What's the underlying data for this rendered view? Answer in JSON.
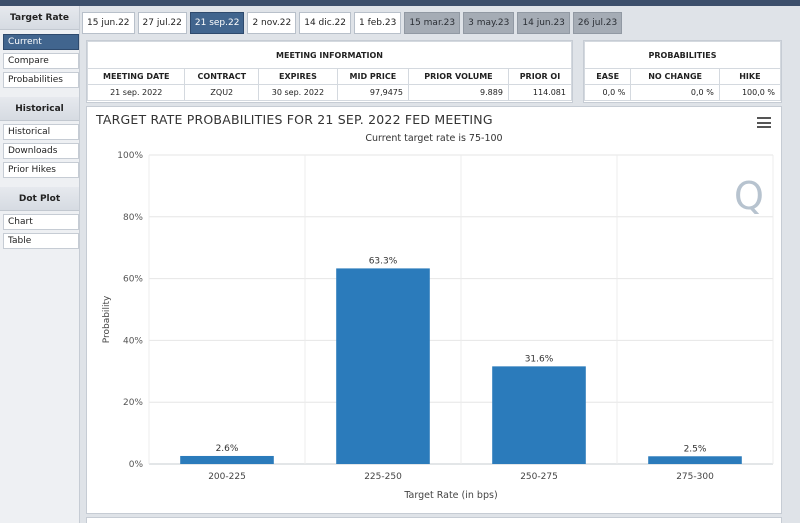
{
  "sidebar": {
    "sections": [
      {
        "title": "Target Rate",
        "items": [
          "Current",
          "Compare",
          "Probabilities"
        ],
        "active": 0
      },
      {
        "title": "Historical",
        "items": [
          "Historical",
          "Downloads",
          "Prior Hikes"
        ]
      },
      {
        "title": "Dot Plot",
        "items": [
          "Chart",
          "Table"
        ]
      }
    ]
  },
  "tabs": [
    {
      "label": "15 jun.22",
      "state": "normal"
    },
    {
      "label": "27 jul.22",
      "state": "normal"
    },
    {
      "label": "21 sep.22",
      "state": "active"
    },
    {
      "label": "2 nov.22",
      "state": "normal"
    },
    {
      "label": "14 dic.22",
      "state": "normal"
    },
    {
      "label": "1 feb.23",
      "state": "normal"
    },
    {
      "label": "15 mar.23",
      "state": "muted"
    },
    {
      "label": "3 may.23",
      "state": "muted"
    },
    {
      "label": "14 jun.23",
      "state": "muted"
    },
    {
      "label": "26 jul.23",
      "state": "muted"
    }
  ],
  "meeting_info": {
    "title": "MEETING INFORMATION",
    "headers": [
      "MEETING DATE",
      "CONTRACT",
      "EXPIRES",
      "MID PRICE",
      "PRIOR VOLUME",
      "PRIOR OI"
    ],
    "row": [
      "21 sep. 2022",
      "ZQU2",
      "30 sep. 2022",
      "97,9475",
      "9.889",
      "114.081"
    ]
  },
  "probabilities": {
    "title": "PROBABILITIES",
    "headers": [
      "EASE",
      "NO CHANGE",
      "HIKE"
    ],
    "row": [
      "0,0 %",
      "0,0 %",
      "100,0 %"
    ]
  },
  "chart": {
    "title": "TARGET RATE PROBABILITIES FOR 21 SEP. 2022 FED MEETING",
    "subtitle": "Current target rate is 75-100"
  },
  "chart_data": {
    "type": "bar",
    "categories": [
      "200-225",
      "225-250",
      "250-275",
      "275-300"
    ],
    "values": [
      2.6,
      63.3,
      31.6,
      2.5
    ],
    "data_labels": [
      "2.6%",
      "63.3%",
      "31.6%",
      "2.5%"
    ],
    "xlabel": "Target Rate (in bps)",
    "ylabel": "Probability",
    "ylim": [
      0,
      100
    ],
    "yticks": [
      0,
      20,
      40,
      60,
      80,
      100
    ],
    "ytick_labels": [
      "0%",
      "20%",
      "40%",
      "60%",
      "80%",
      "100%"
    ],
    "bar_color": "#2b7bbb",
    "grid": true
  },
  "icons": {
    "menu": "hamburger-menu-icon",
    "watermark": "q-logo-watermark"
  }
}
